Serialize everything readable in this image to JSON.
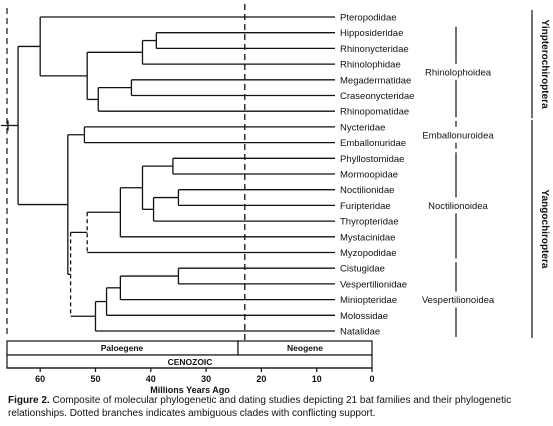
{
  "figure": {
    "taxa": [
      "Pteropodidae",
      "Hipposideridae",
      "Rhinonycteridae",
      "Rhinolophidae",
      "Megadermatidae",
      "Craseonycteridae",
      "Rhinopomatidae",
      "Nycteridae",
      "Emballonuridae",
      "Phyllostomidae",
      "Mormoopidae",
      "Noctilionidae",
      "Furipteridae",
      "Thyropteridae",
      "Mystacinidae",
      "Myzopodidae",
      "Cistugidae",
      "Vespertilionidae",
      "Miniopteridae",
      "Molossidae",
      "Natalidae"
    ],
    "superfamilies": [
      {
        "name": "Rhinolophoidea",
        "from": 1,
        "to": 6
      },
      {
        "name": "Emballonuroidea",
        "from": 7,
        "to": 8
      },
      {
        "name": "Noctilionoidea",
        "from": 9,
        "to": 15
      },
      {
        "name": "Vespertilionoidea",
        "from": 16,
        "to": 20
      }
    ],
    "suborders": [
      {
        "name": "Yinpterochiroptera",
        "from": 0,
        "to": 6
      },
      {
        "name": "Yangochiroptera",
        "from": 7,
        "to": 20
      }
    ],
    "periods": [
      {
        "name": "Paloegene",
        "from": 66,
        "to": 23
      },
      {
        "name": "Neogene",
        "from": 23,
        "to": 0
      }
    ],
    "era": "CENOZOIC",
    "axis": {
      "title": "Millions Years Ago",
      "ticks": [
        60,
        50,
        40,
        30,
        20,
        10,
        0
      ]
    },
    "boundary_mya": 23
  },
  "caption": {
    "label": "Figure 2.",
    "text": " Composite of molecular phylogenetic and dating studies depicting 21 bat families and their phylogenetic relationships. Dotted branches indicates ambiguous clades with conflicting support."
  },
  "tree": {
    "root_mya": 66,
    "nodes": [
      {
        "id": "n_hr",
        "mya": 39,
        "children": [
          "t1",
          "t2"
        ]
      },
      {
        "id": "n_hrr",
        "mya": 41.5,
        "children": [
          "n_hr",
          "t3"
        ]
      },
      {
        "id": "n_mc",
        "mya": 43.5,
        "children": [
          "t4",
          "t5"
        ]
      },
      {
        "id": "n_mcr",
        "mya": 49.5,
        "children": [
          "n_mc",
          "t6"
        ]
      },
      {
        "id": "n_rhino",
        "mya": 51.5,
        "children": [
          "n_hrr",
          "n_mcr"
        ]
      },
      {
        "id": "n_yin",
        "mya": 60,
        "children": [
          "t0",
          "n_rhino"
        ]
      },
      {
        "id": "n_emb",
        "mya": 52,
        "children": [
          "t7",
          "t8"
        ]
      },
      {
        "id": "n_pm",
        "mya": 36,
        "children": [
          "t9",
          "t10"
        ]
      },
      {
        "id": "n_nf",
        "mya": 35,
        "children": [
          "t11",
          "t12"
        ]
      },
      {
        "id": "n_nft",
        "mya": 39.5,
        "children": [
          "n_nf",
          "t13"
        ]
      },
      {
        "id": "n_noc3",
        "mya": 41.5,
        "children": [
          "n_pm",
          "n_nft"
        ]
      },
      {
        "id": "n_noc2",
        "mya": 45.5,
        "children": [
          "n_noc3",
          "t14"
        ]
      },
      {
        "id": "n_noc1",
        "mya": 51.5,
        "children": [
          "n_noc2",
          "t15"
        ],
        "dashed": true
      },
      {
        "id": "n_cv",
        "mya": 35,
        "children": [
          "t16",
          "t17"
        ]
      },
      {
        "id": "n_cvm",
        "mya": 45.5,
        "children": [
          "n_cv",
          "t18"
        ]
      },
      {
        "id": "n_ves2",
        "mya": 48,
        "children": [
          "n_cvm",
          "t19"
        ]
      },
      {
        "id": "n_ves1",
        "mya": 50,
        "children": [
          "n_ves2",
          "t20"
        ]
      },
      {
        "id": "n_nv",
        "mya": 54.5,
        "children": [
          "n_noc1",
          "n_ves1"
        ],
        "dashed": true
      },
      {
        "id": "n_yang",
        "mya": 55,
        "children": [
          "n_emb",
          "n_nv"
        ]
      },
      {
        "id": "n_root",
        "mya": 64,
        "children": [
          "n_yin",
          "n_yang"
        ]
      }
    ]
  }
}
